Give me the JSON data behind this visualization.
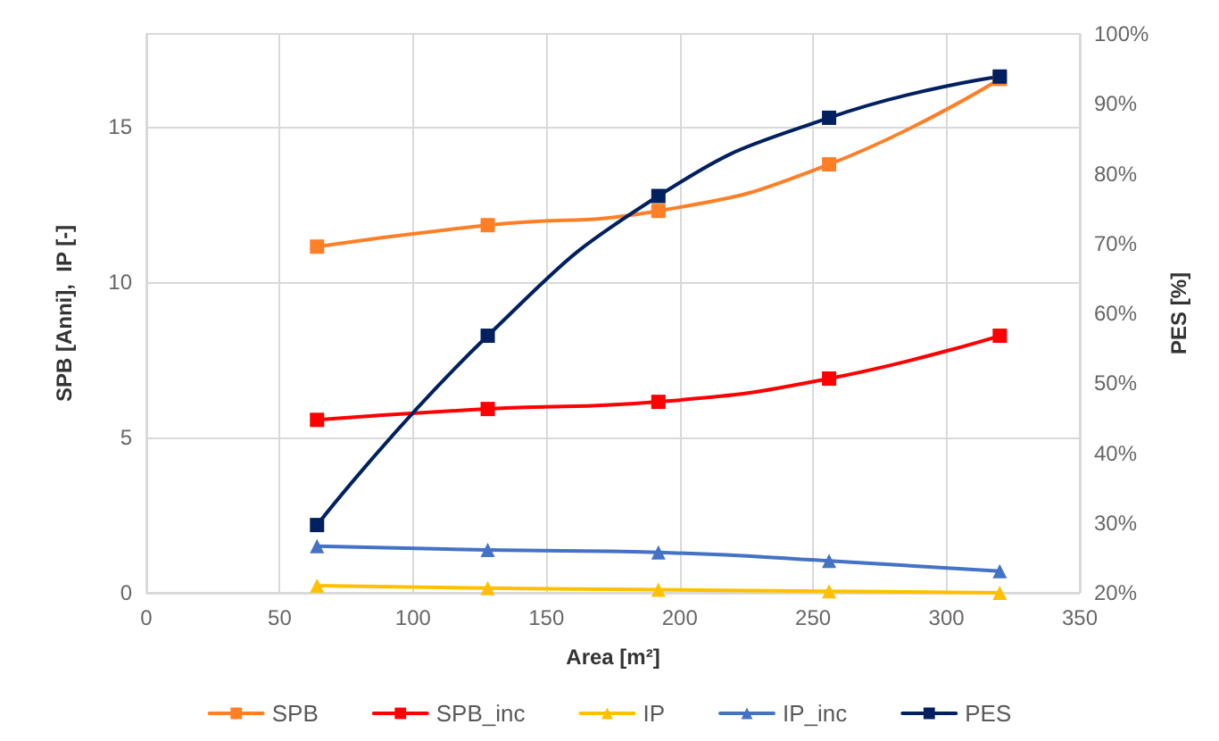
{
  "chart_data": {
    "type": "line",
    "xlabel": "Area [m²]",
    "ylabel": "SPB [Anni],  IP [-]",
    "y2label": "PES [%]",
    "x": [
      64,
      128,
      192,
      256,
      320
    ],
    "series": [
      {
        "name": "SPB",
        "color": "#ff7f27",
        "marker": "square",
        "values": [
          11.15,
          11.84,
          12.3,
          13.8,
          16.55
        ]
      },
      {
        "name": "SPB_inc",
        "color": "#ff0000",
        "marker": "square",
        "values": [
          5.57,
          5.92,
          6.15,
          6.9,
          8.28
        ]
      },
      {
        "name": "IP",
        "color": "#ffc000",
        "marker": "triangle",
        "values": [
          0.23,
          0.15,
          0.1,
          0.05,
          0
        ]
      },
      {
        "name": "IP_inc",
        "color": "#4472c4",
        "marker": "triangle",
        "values": [
          1.5,
          1.38,
          1.3,
          1.03,
          0.7
        ]
      },
      {
        "name": "PES",
        "color": "#002060",
        "marker": "square",
        "axis": "y2",
        "values": [
          29.7,
          56.8,
          76.8,
          88,
          93.9
        ]
      }
    ],
    "xlim": [
      0,
      350
    ],
    "xticks": [
      0,
      50,
      100,
      150,
      200,
      250,
      300,
      350
    ],
    "ylim": [
      0,
      18
    ],
    "yticks": [
      0,
      5,
      10,
      15
    ],
    "y2lim": [
      20,
      100
    ],
    "y2ticks": [
      {
        "value": 20,
        "label": "20%"
      },
      {
        "value": 30,
        "label": "30%"
      },
      {
        "value": 40,
        "label": "40%"
      },
      {
        "value": 50,
        "label": "50%"
      },
      {
        "value": 60,
        "label": "60%"
      },
      {
        "value": 70,
        "label": "70%"
      },
      {
        "value": 80,
        "label": "80%"
      },
      {
        "value": 90,
        "label": "90%"
      },
      {
        "value": 100,
        "label": "100%"
      }
    ],
    "grid": true,
    "legend": "bottom",
    "line_style": "solid"
  }
}
